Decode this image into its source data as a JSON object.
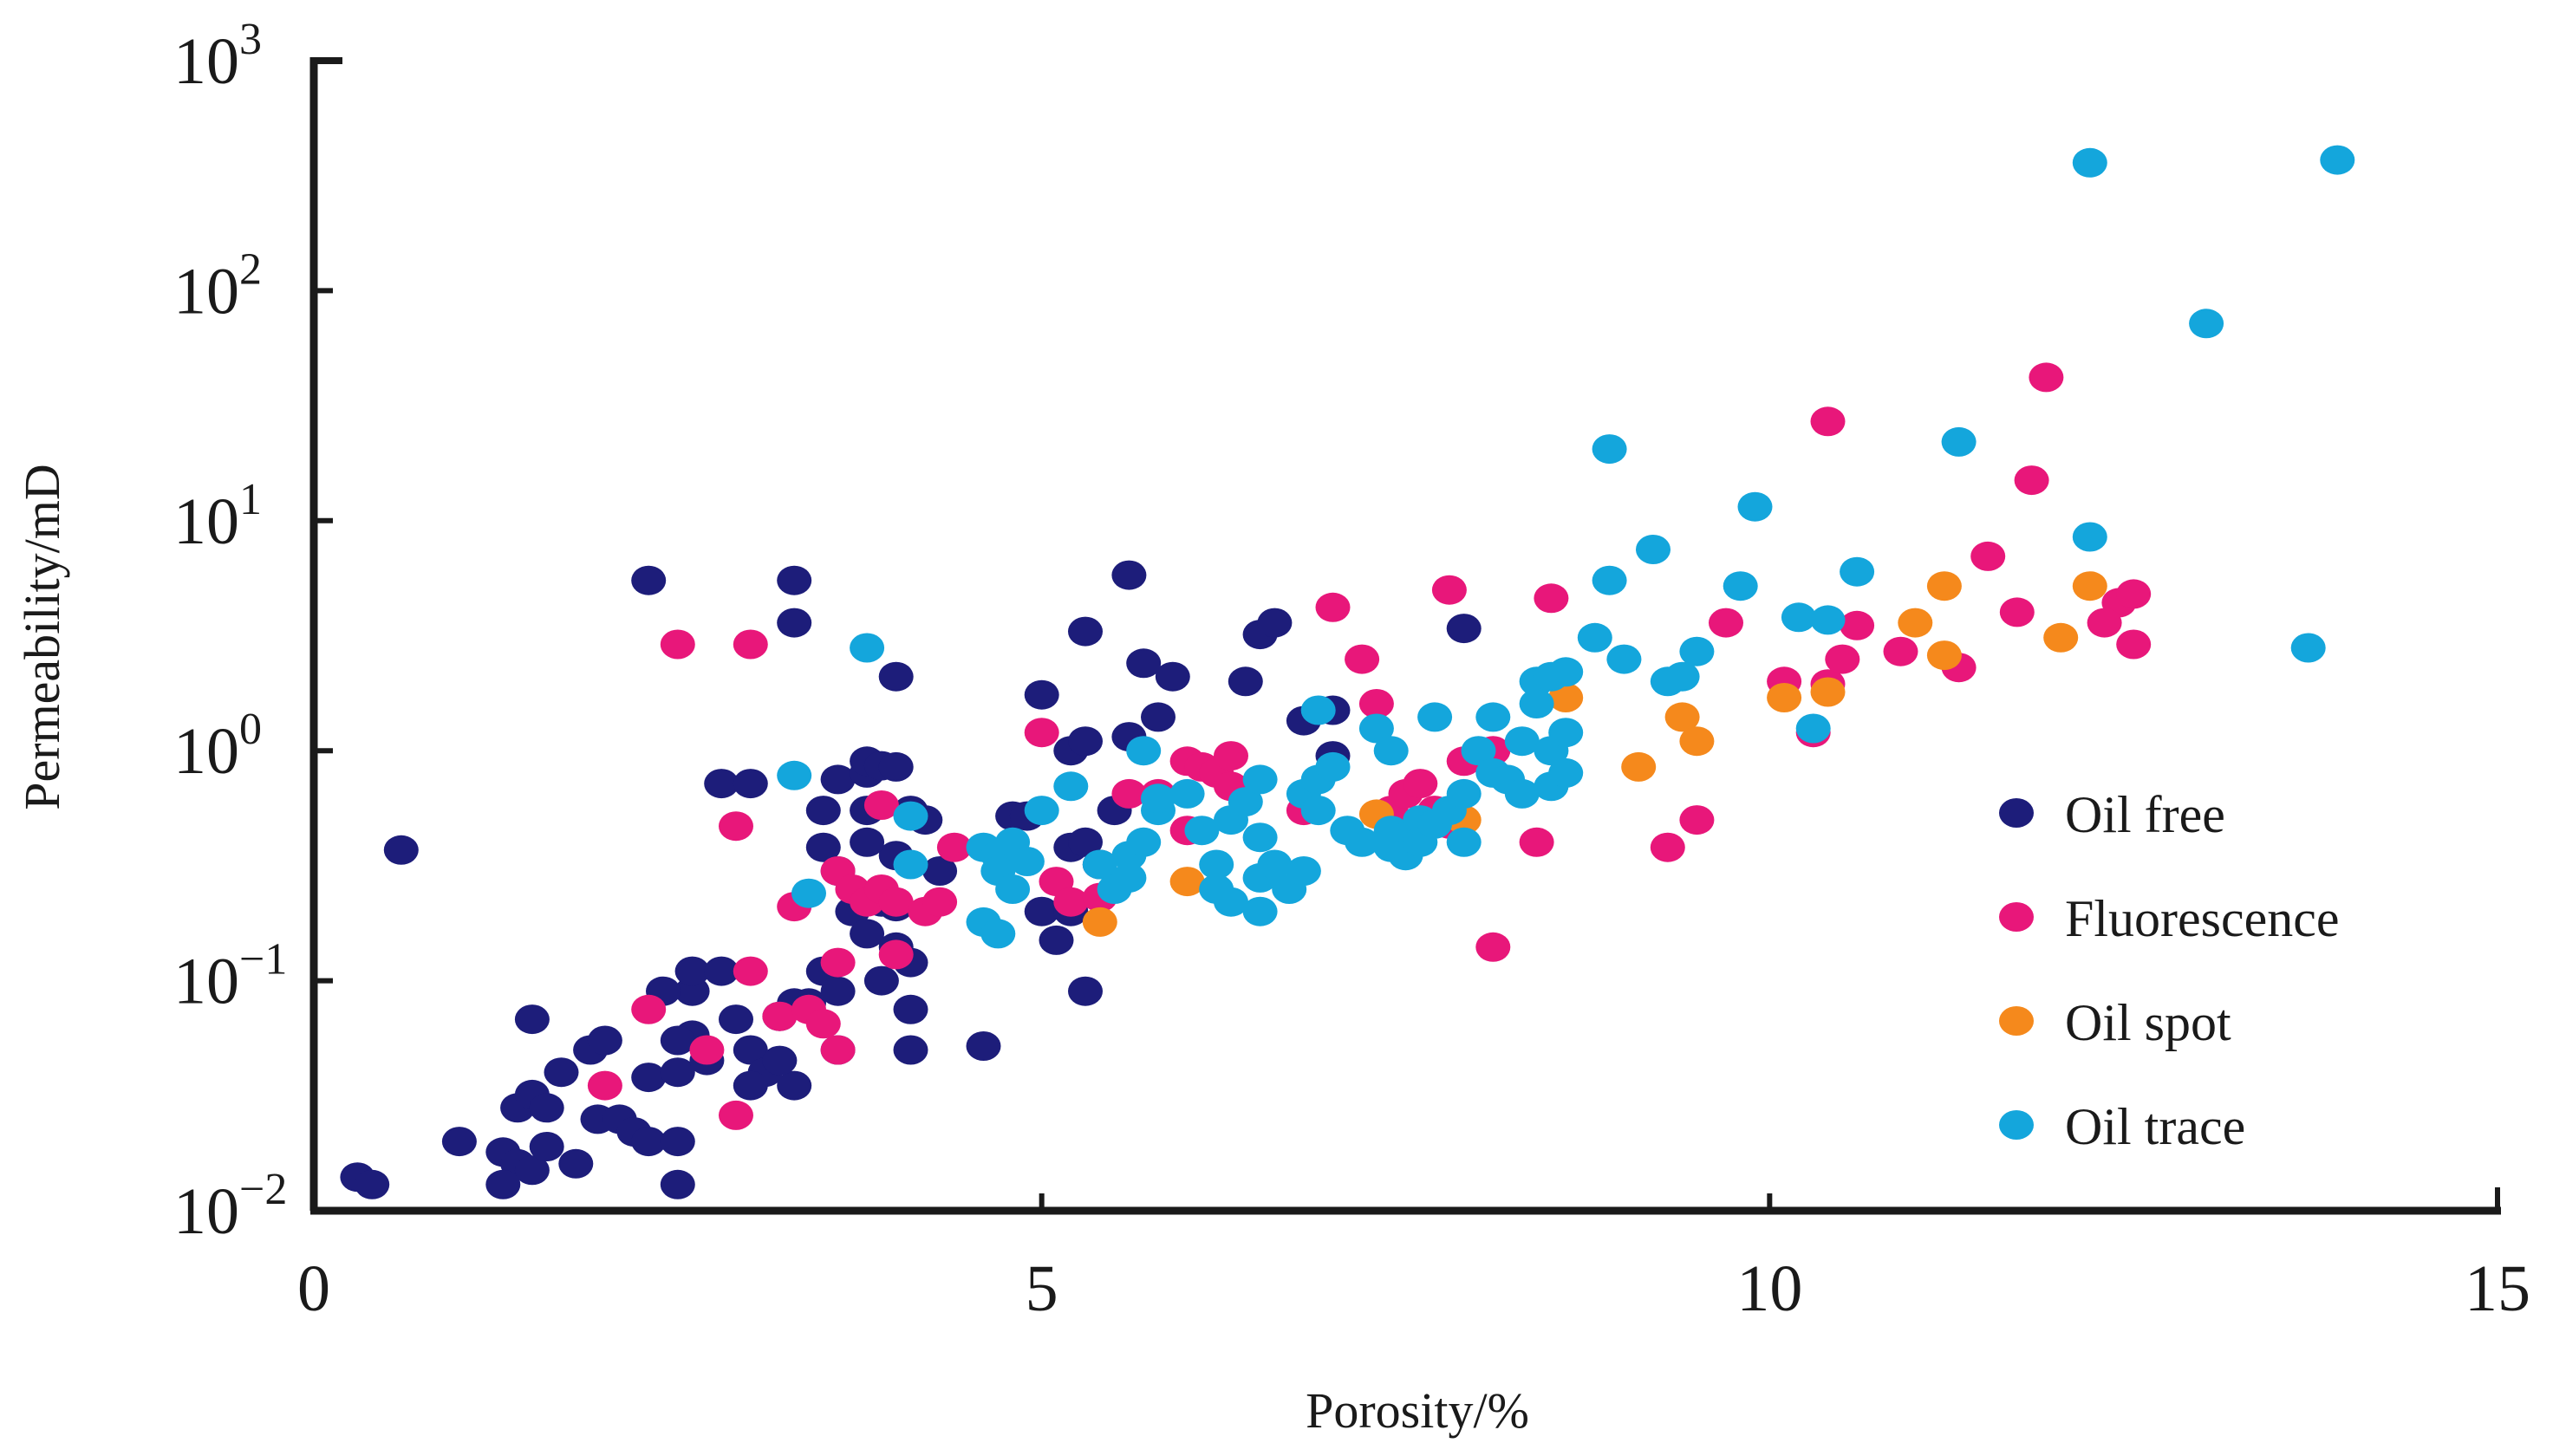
{
  "chart_data": {
    "type": "scatter",
    "title": "",
    "xlabel": "Porosity/%",
    "ylabel": "Permeability/mD",
    "xlim": [
      0,
      15
    ],
    "ylim": [
      0.01,
      1000
    ],
    "yscale": "log",
    "grid": false,
    "legend_position": "right-center",
    "x_ticks": [
      {
        "value": 0,
        "label": "0"
      },
      {
        "value": 5,
        "label": "5"
      },
      {
        "value": 10,
        "label": "10"
      },
      {
        "value": 15,
        "label": "15"
      }
    ],
    "y_ticks": [
      {
        "value": 0.01,
        "base": "10",
        "exp": "−2"
      },
      {
        "value": 0.1,
        "base": "10",
        "exp": "−1"
      },
      {
        "value": 1,
        "base": "10",
        "exp": "0"
      },
      {
        "value": 10,
        "base": "10",
        "exp": "1"
      },
      {
        "value": 100,
        "base": "10",
        "exp": "2"
      },
      {
        "value": 1000,
        "base": "10",
        "exp": "3"
      }
    ],
    "series": [
      {
        "name": "Oil free",
        "color": "#1d1d7a",
        "points": [
          [
            0.3,
            0.014
          ],
          [
            0.4,
            0.013
          ],
          [
            0.6,
            0.37
          ],
          [
            1.0,
            0.02
          ],
          [
            1.3,
            0.018
          ],
          [
            1.4,
            0.016
          ],
          [
            1.3,
            0.013
          ],
          [
            1.5,
            0.015
          ],
          [
            1.6,
            0.019
          ],
          [
            1.8,
            0.016
          ],
          [
            1.4,
            0.028
          ],
          [
            1.5,
            0.032
          ],
          [
            1.6,
            0.028
          ],
          [
            1.7,
            0.04
          ],
          [
            1.5,
            0.068
          ],
          [
            1.9,
            0.05
          ],
          [
            2.0,
            0.055
          ],
          [
            1.95,
            0.025
          ],
          [
            2.1,
            0.025
          ],
          [
            2.2,
            0.022
          ],
          [
            2.3,
            0.02
          ],
          [
            2.5,
            0.02
          ],
          [
            2.5,
            0.013
          ],
          [
            2.3,
            0.038
          ],
          [
            2.5,
            0.04
          ],
          [
            2.6,
            0.058
          ],
          [
            2.5,
            0.055
          ],
          [
            2.6,
            0.09
          ],
          [
            2.6,
            0.11
          ],
          [
            2.8,
            0.11
          ],
          [
            2.4,
            0.09
          ],
          [
            2.7,
            0.045
          ],
          [
            2.9,
            0.068
          ],
          [
            3.0,
            0.05
          ],
          [
            3.1,
            0.04
          ],
          [
            3.3,
            0.035
          ],
          [
            3.2,
            0.045
          ],
          [
            3.0,
            0.035
          ],
          [
            3.2,
            0.07
          ],
          [
            3.3,
            0.08
          ],
          [
            3.4,
            0.08
          ],
          [
            3.5,
            0.11
          ],
          [
            3.6,
            0.09
          ],
          [
            3.6,
            0.05
          ],
          [
            3.9,
            0.1
          ],
          [
            4.1,
            0.075
          ],
          [
            4.1,
            0.05
          ],
          [
            4.6,
            0.052
          ],
          [
            3.7,
            0.2
          ],
          [
            3.8,
            0.16
          ],
          [
            3.9,
            0.22
          ],
          [
            4.0,
            0.21
          ],
          [
            4.0,
            0.14
          ],
          [
            4.1,
            0.12
          ],
          [
            3.6,
            0.3
          ],
          [
            3.5,
            0.38
          ],
          [
            3.8,
            0.55
          ],
          [
            3.5,
            0.55
          ],
          [
            3.6,
            0.75
          ],
          [
            3.8,
            0.8
          ],
          [
            3.8,
            0.9
          ],
          [
            3.9,
            0.86
          ],
          [
            4.0,
            0.85
          ],
          [
            4.1,
            0.55
          ],
          [
            4.2,
            0.5
          ],
          [
            4.0,
            0.35
          ],
          [
            4.3,
            0.3
          ],
          [
            3.8,
            0.4
          ],
          [
            2.8,
            0.72
          ],
          [
            3.0,
            0.72
          ],
          [
            2.3,
            5.5
          ],
          [
            3.3,
            5.5
          ],
          [
            3.3,
            3.6
          ],
          [
            4.0,
            2.1
          ],
          [
            5.0,
            1.75
          ],
          [
            5.2,
            1.0
          ],
          [
            5.3,
            1.1
          ],
          [
            5.6,
            1.15
          ],
          [
            5.3,
            3.3
          ],
          [
            5.6,
            5.8
          ],
          [
            5.7,
            2.4
          ],
          [
            5.9,
            2.1
          ],
          [
            5.8,
            1.4
          ],
          [
            6.4,
            2.0
          ],
          [
            6.5,
            3.2
          ],
          [
            6.6,
            3.6
          ],
          [
            6.8,
            1.35
          ],
          [
            7.0,
            0.95
          ],
          [
            7.0,
            1.5
          ],
          [
            7.9,
            3.4
          ],
          [
            4.8,
            0.52
          ],
          [
            4.9,
            0.52
          ],
          [
            5.2,
            0.38
          ],
          [
            5.3,
            0.4
          ],
          [
            5.4,
            0.32
          ],
          [
            5.0,
            0.2
          ],
          [
            5.1,
            0.15
          ],
          [
            5.2,
            0.2
          ],
          [
            5.3,
            0.09
          ],
          [
            5.5,
            0.55
          ]
        ]
      },
      {
        "name": "Fluorescence",
        "color": "#e8177a",
        "points": [
          [
            2.5,
            2.9
          ],
          [
            3.0,
            2.9
          ],
          [
            2.9,
            0.47
          ],
          [
            2.0,
            0.035
          ],
          [
            2.3,
            0.075
          ],
          [
            2.7,
            0.05
          ],
          [
            2.9,
            0.026
          ],
          [
            3.0,
            0.11
          ],
          [
            3.2,
            0.07
          ],
          [
            3.3,
            0.21
          ],
          [
            3.4,
            0.075
          ],
          [
            3.5,
            0.065
          ],
          [
            3.6,
            0.05
          ],
          [
            3.6,
            0.12
          ],
          [
            3.6,
            0.3
          ],
          [
            3.7,
            0.25
          ],
          [
            3.8,
            0.22
          ],
          [
            3.9,
            0.25
          ],
          [
            4.0,
            0.22
          ],
          [
            4.0,
            0.13
          ],
          [
            4.2,
            0.2
          ],
          [
            4.3,
            0.22
          ],
          [
            4.4,
            0.38
          ],
          [
            3.9,
            0.58
          ],
          [
            5.0,
            1.2
          ],
          [
            5.1,
            0.27
          ],
          [
            5.2,
            0.22
          ],
          [
            5.4,
            0.23
          ],
          [
            5.6,
            0.65
          ],
          [
            5.8,
            0.65
          ],
          [
            6.0,
            0.9
          ],
          [
            6.1,
            0.85
          ],
          [
            6.2,
            0.8
          ],
          [
            6.3,
            0.95
          ],
          [
            6.3,
            0.7
          ],
          [
            6.0,
            0.45
          ],
          [
            6.8,
            0.55
          ],
          [
            7.0,
            4.2
          ],
          [
            7.2,
            2.5
          ],
          [
            7.3,
            1.6
          ],
          [
            7.4,
            0.55
          ],
          [
            7.5,
            0.65
          ],
          [
            7.6,
            0.72
          ],
          [
            7.7,
            0.55
          ],
          [
            7.8,
            0.48
          ],
          [
            7.8,
            5.0
          ],
          [
            7.9,
            0.9
          ],
          [
            8.1,
            1.0
          ],
          [
            8.1,
            0.14
          ],
          [
            8.4,
            0.4
          ],
          [
            8.5,
            4.6
          ],
          [
            9.3,
            0.38
          ],
          [
            9.5,
            0.5
          ],
          [
            9.7,
            3.6
          ],
          [
            10.1,
            2.0
          ],
          [
            10.3,
            1.2
          ],
          [
            10.4,
            1.95
          ],
          [
            10.5,
            2.5
          ],
          [
            10.6,
            3.5
          ],
          [
            10.9,
            2.7
          ],
          [
            10.4,
            27.0
          ],
          [
            11.3,
            2.3
          ],
          [
            11.5,
            7.0
          ],
          [
            11.7,
            4.0
          ],
          [
            11.8,
            15.0
          ],
          [
            11.9,
            42.0
          ],
          [
            12.4,
            4.4
          ],
          [
            12.5,
            4.8
          ],
          [
            12.5,
            2.9
          ],
          [
            12.3,
            3.6
          ]
        ]
      },
      {
        "name": "Oil spot",
        "color": "#f5891c",
        "points": [
          [
            5.4,
            0.18
          ],
          [
            6.0,
            0.27
          ],
          [
            7.3,
            0.53
          ],
          [
            7.9,
            0.5
          ],
          [
            8.6,
            1.7
          ],
          [
            9.1,
            0.85
          ],
          [
            9.4,
            1.4
          ],
          [
            9.5,
            1.1
          ],
          [
            10.1,
            1.7
          ],
          [
            10.4,
            1.8
          ],
          [
            11.0,
            3.6
          ],
          [
            11.2,
            5.2
          ],
          [
            11.2,
            2.6
          ],
          [
            12.0,
            3.1
          ],
          [
            12.2,
            5.2
          ]
        ]
      },
      {
        "name": "Oil trace",
        "color": "#14a6dc",
        "points": [
          [
            3.3,
            0.78
          ],
          [
            3.8,
            2.8
          ],
          [
            4.1,
            0.32
          ],
          [
            4.1,
            0.52
          ],
          [
            3.4,
            0.24
          ],
          [
            4.6,
            0.38
          ],
          [
            4.7,
            0.35
          ],
          [
            4.7,
            0.3
          ],
          [
            4.8,
            0.4
          ],
          [
            4.9,
            0.33
          ],
          [
            4.6,
            0.18
          ],
          [
            4.7,
            0.16
          ],
          [
            4.8,
            0.25
          ],
          [
            5.0,
            0.55
          ],
          [
            5.2,
            0.7
          ],
          [
            5.4,
            0.32
          ],
          [
            5.5,
            0.25
          ],
          [
            5.6,
            0.28
          ],
          [
            5.6,
            0.35
          ],
          [
            5.7,
            0.4
          ],
          [
            5.8,
            0.55
          ],
          [
            5.7,
            1.0
          ],
          [
            5.8,
            0.62
          ],
          [
            6.0,
            0.65
          ],
          [
            6.1,
            0.45
          ],
          [
            6.2,
            0.32
          ],
          [
            6.2,
            0.25
          ],
          [
            6.3,
            0.22
          ],
          [
            6.3,
            0.5
          ],
          [
            6.4,
            0.6
          ],
          [
            6.5,
            0.2
          ],
          [
            6.5,
            0.28
          ],
          [
            6.5,
            0.42
          ],
          [
            6.5,
            0.75
          ],
          [
            6.6,
            0.32
          ],
          [
            6.7,
            0.25
          ],
          [
            6.8,
            0.3
          ],
          [
            6.8,
            0.65
          ],
          [
            6.9,
            0.75
          ],
          [
            6.9,
            0.55
          ],
          [
            6.9,
            1.5
          ],
          [
            7.0,
            0.85
          ],
          [
            7.1,
            0.45
          ],
          [
            7.2,
            0.4
          ],
          [
            7.3,
            1.25
          ],
          [
            7.4,
            0.38
          ],
          [
            7.4,
            0.45
          ],
          [
            7.4,
            1.0
          ],
          [
            7.5,
            0.42
          ],
          [
            7.5,
            0.35
          ],
          [
            7.6,
            0.5
          ],
          [
            7.6,
            0.4
          ],
          [
            7.7,
            1.4
          ],
          [
            7.7,
            0.48
          ],
          [
            7.8,
            0.55
          ],
          [
            7.9,
            0.65
          ],
          [
            7.9,
            0.4
          ],
          [
            8.0,
            1.0
          ],
          [
            8.1,
            1.4
          ],
          [
            8.1,
            0.8
          ],
          [
            8.2,
            0.75
          ],
          [
            8.3,
            1.1
          ],
          [
            8.3,
            0.65
          ],
          [
            8.4,
            1.6
          ],
          [
            8.4,
            2.0
          ],
          [
            8.5,
            2.1
          ],
          [
            8.5,
            1.0
          ],
          [
            8.5,
            0.7
          ],
          [
            8.6,
            1.2
          ],
          [
            8.6,
            0.8
          ],
          [
            8.6,
            2.2
          ],
          [
            8.8,
            3.1
          ],
          [
            8.9,
            20.5
          ],
          [
            8.9,
            5.5
          ],
          [
            9.0,
            2.5
          ],
          [
            9.2,
            7.5
          ],
          [
            9.3,
            2.0
          ],
          [
            9.4,
            2.1
          ],
          [
            9.5,
            2.7
          ],
          [
            9.8,
            5.2
          ],
          [
            9.9,
            11.5
          ],
          [
            10.2,
            3.8
          ],
          [
            10.3,
            1.25
          ],
          [
            10.4,
            3.7
          ],
          [
            10.6,
            6.0
          ],
          [
            11.3,
            22.0
          ],
          [
            12.2,
            8.5
          ],
          [
            12.2,
            360
          ],
          [
            13.0,
            72
          ],
          [
            13.7,
            2.8
          ],
          [
            13.9,
            370
          ]
        ]
      }
    ]
  }
}
